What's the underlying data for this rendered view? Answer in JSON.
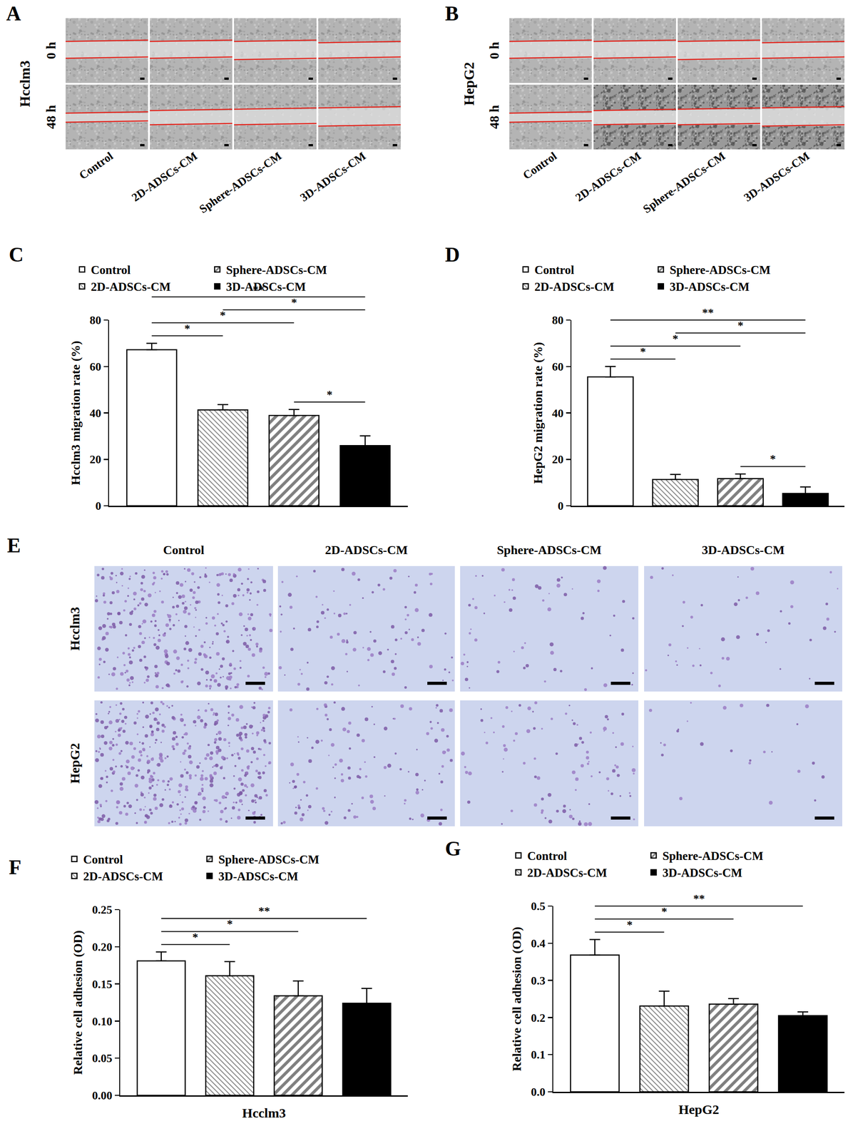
{
  "figure": {
    "wound_healing": [
      {
        "panel": "A",
        "cell_line": "Hcclm3",
        "rows": [
          "0 h",
          "48 h"
        ],
        "columns": [
          "Control",
          "2D-ADSCs-CM",
          "Sphere-ADSCs-CM",
          "3D-ADSCs-CM"
        ]
      },
      {
        "panel": "B",
        "cell_line": "HepG2",
        "rows": [
          "0 h",
          "48 h"
        ],
        "columns": [
          "Control",
          "2D-ADSCs-CM",
          "Sphere-ADSCs-CM",
          "3D-ADSCs-CM"
        ]
      }
    ],
    "transwell": {
      "panel": "E",
      "rows": [
        "Hcclm3",
        "HepG2"
      ],
      "columns": [
        "Control",
        "2D-ADSCs-CM",
        "Sphere-ADSCs-CM",
        "3D-ADSCs-CM"
      ]
    }
  },
  "chart_data": [
    {
      "panel": "C",
      "type": "bar",
      "ylabel": "Hcclm3 migration rate (%)",
      "ylim": [
        0,
        80
      ],
      "yticks": [
        0,
        20,
        40,
        60,
        80
      ],
      "tick_labels": "y",
      "legend": "top",
      "grid": false,
      "series": [
        {
          "name": "Control",
          "color": "#ffffff",
          "marker": "open",
          "values": [
            67.2
          ],
          "error": [
            2.8
          ]
        },
        {
          "name": "2D-ADSCs-CM",
          "color": "#ffffff",
          "marker": "back_hatch",
          "values": [
            41.3
          ],
          "error": [
            2.3
          ]
        },
        {
          "name": "Sphere-ADSCs-CM",
          "color": "#ffffff",
          "marker": "forward_hatch",
          "values": [
            38.9
          ],
          "error": [
            2.6
          ]
        },
        {
          "name": "3D-ADSCs-CM",
          "color": "#000000",
          "marker": "solid",
          "values": [
            25.9
          ],
          "error": [
            4.2
          ]
        }
      ],
      "significance": [
        {
          "between": [
            "Control",
            "2D-ADSCs-CM"
          ],
          "label": "*"
        },
        {
          "between": [
            "Control",
            "Sphere-ADSCs-CM"
          ],
          "label": "*"
        },
        {
          "between": [
            "Control",
            "3D-ADSCs-CM"
          ],
          "label": "**"
        },
        {
          "between": [
            "2D-ADSCs-CM",
            "3D-ADSCs-CM"
          ],
          "label": "*"
        },
        {
          "between": [
            "Sphere-ADSCs-CM",
            "3D-ADSCs-CM"
          ],
          "label": "*"
        }
      ]
    },
    {
      "panel": "D",
      "type": "bar",
      "ylabel": "HepG2 migration rate (%)",
      "ylim": [
        0,
        80
      ],
      "yticks": [
        0,
        20,
        40,
        60,
        80
      ],
      "tick_labels": "y",
      "legend": "top",
      "grid": false,
      "series": [
        {
          "name": "Control",
          "color": "#ffffff",
          "marker": "open",
          "values": [
            55.5
          ],
          "error": [
            4.5
          ]
        },
        {
          "name": "2D-ADSCs-CM",
          "color": "#ffffff",
          "marker": "back_hatch",
          "values": [
            11.3
          ],
          "error": [
            2.2
          ]
        },
        {
          "name": "Sphere-ADSCs-CM",
          "color": "#ffffff",
          "marker": "forward_hatch",
          "values": [
            11.7
          ],
          "error": [
            2.0
          ]
        },
        {
          "name": "3D-ADSCs-CM",
          "color": "#000000",
          "marker": "solid",
          "values": [
            5.3
          ],
          "error": [
            2.8
          ]
        }
      ],
      "significance": [
        {
          "between": [
            "Control",
            "2D-ADSCs-CM"
          ],
          "label": "*"
        },
        {
          "between": [
            "Control",
            "Sphere-ADSCs-CM"
          ],
          "label": "*"
        },
        {
          "between": [
            "Control",
            "3D-ADSCs-CM"
          ],
          "label": "**"
        },
        {
          "between": [
            "2D-ADSCs-CM",
            "3D-ADSCs-CM"
          ],
          "label": "*"
        },
        {
          "between": [
            "Sphere-ADSCs-CM",
            "3D-ADSCs-CM"
          ],
          "label": "*"
        }
      ]
    },
    {
      "panel": "F",
      "type": "bar",
      "ylabel": "Relative cell adhesion (OD)",
      "xlabel": "Hcclm3",
      "ylim": [
        0,
        0.25
      ],
      "yticks": [
        {
          "value": 0,
          "label": "0.00"
        },
        0.05,
        {
          "value": 0.1,
          "label": "0.10"
        },
        0.15,
        {
          "value": 0.2,
          "label": "0.20"
        },
        0.25
      ],
      "tick_labels": "y",
      "legend": "top",
      "grid": false,
      "series": [
        {
          "name": "Control",
          "color": "#ffffff",
          "marker": "open",
          "values": [
            0.181
          ],
          "error": [
            0.012
          ]
        },
        {
          "name": "2D-ADSCs-CM",
          "color": "#ffffff",
          "marker": "back_hatch",
          "values": [
            0.161
          ],
          "error": [
            0.019
          ]
        },
        {
          "name": "Sphere-ADSCs-CM",
          "color": "#ffffff",
          "marker": "forward_hatch",
          "values": [
            0.134
          ],
          "error": [
            0.02
          ]
        },
        {
          "name": "3D-ADSCs-CM",
          "color": "#000000",
          "marker": "solid",
          "values": [
            0.124
          ],
          "error": [
            0.02
          ]
        }
      ],
      "significance": [
        {
          "between": [
            "Control",
            "2D-ADSCs-CM"
          ],
          "label": "*"
        },
        {
          "between": [
            "Control",
            "Sphere-ADSCs-CM"
          ],
          "label": "*"
        },
        {
          "between": [
            "Control",
            "3D-ADSCs-CM"
          ],
          "label": "**"
        }
      ]
    },
    {
      "panel": "G",
      "type": "bar",
      "ylabel": "Relative cell adhesion (OD)",
      "xlabel": "HepG2",
      "ylim": [
        0,
        0.5
      ],
      "yticks": [
        {
          "value": 0,
          "label": "0.0"
        },
        0.1,
        0.2,
        0.3,
        0.4,
        0.5
      ],
      "tick_labels": "y",
      "legend": "top",
      "grid": false,
      "series": [
        {
          "name": "Control",
          "color": "#ffffff",
          "marker": "open",
          "values": [
            0.368
          ],
          "error": [
            0.042
          ]
        },
        {
          "name": "2D-ADSCs-CM",
          "color": "#ffffff",
          "marker": "back_hatch",
          "values": [
            0.231
          ],
          "error": [
            0.04
          ]
        },
        {
          "name": "Sphere-ADSCs-CM",
          "color": "#ffffff",
          "marker": "forward_hatch",
          "values": [
            0.236
          ],
          "error": [
            0.015
          ]
        },
        {
          "name": "3D-ADSCs-CM",
          "color": "#000000",
          "marker": "solid",
          "values": [
            0.205
          ],
          "error": [
            0.01
          ]
        }
      ],
      "significance": [
        {
          "between": [
            "Control",
            "2D-ADSCs-CM"
          ],
          "label": "*"
        },
        {
          "between": [
            "Control",
            "Sphere-ADSCs-CM"
          ],
          "label": "*"
        },
        {
          "between": [
            "Control",
            "3D-ADSCs-CM"
          ],
          "label": "**"
        }
      ]
    }
  ]
}
